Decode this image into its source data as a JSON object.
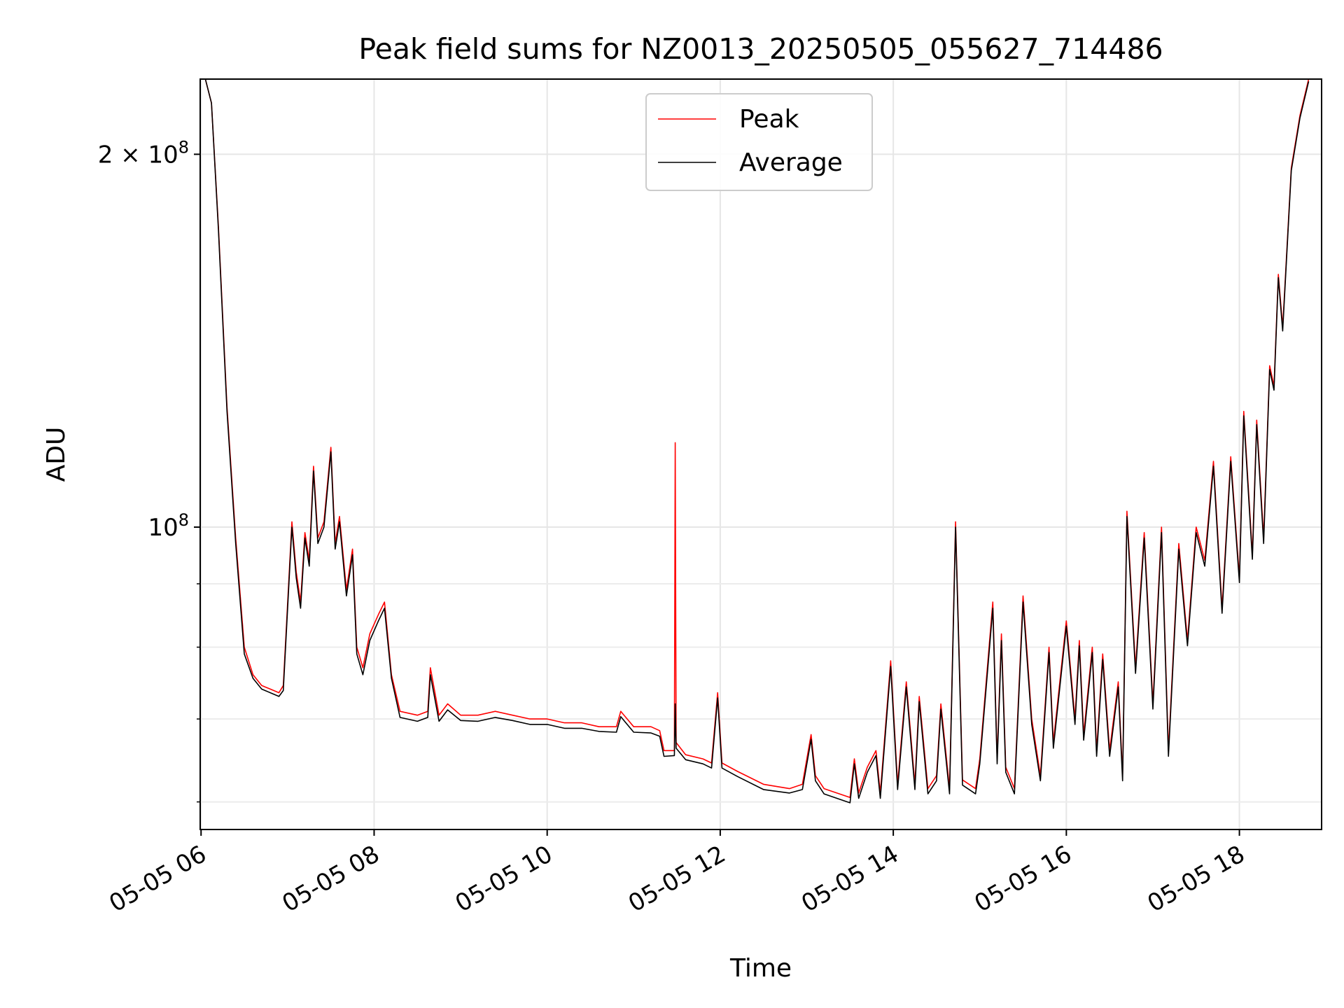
{
  "chart_data": {
    "type": "line",
    "title": "Peak field sums for NZ0013_20250505_055627_714486",
    "xlabel": "Time",
    "ylabel": "ADU",
    "x_unit": "hours",
    "xlim": [
      5.99,
      18.95
    ],
    "x_ticks": [
      {
        "value": 6,
        "label": "05-05 06"
      },
      {
        "value": 8,
        "label": "05-05 08"
      },
      {
        "value": 10,
        "label": "05-05 10"
      },
      {
        "value": 12,
        "label": "05-05 12"
      },
      {
        "value": 14,
        "label": "05-05 14"
      },
      {
        "value": 16,
        "label": "05-05 16"
      },
      {
        "value": 18,
        "label": "05-05 18"
      }
    ],
    "y_scale": "log",
    "ylim": [
      57000000,
      230000000
    ],
    "y_major_ticks": [
      {
        "value": 100000000,
        "label_base": "10",
        "label_exp": "8"
      },
      {
        "value": 200000000,
        "label_base": "2 × 10",
        "label_exp": "8"
      }
    ],
    "y_minor_ticks": [
      60000000,
      70000000,
      80000000,
      90000000
    ],
    "grid": true,
    "legend_position": "top-center",
    "colors": {
      "peak": "#ff0000",
      "average": "#000000"
    },
    "series": [
      {
        "name": "Peak",
        "color": "#ff0000",
        "points": [
          [
            6.05,
            230000000
          ],
          [
            6.12,
            220000000
          ],
          [
            6.2,
            175000000
          ],
          [
            6.3,
            125000000
          ],
          [
            6.4,
            98000000
          ],
          [
            6.5,
            80000000
          ],
          [
            6.6,
            76000000
          ],
          [
            6.7,
            74500000
          ],
          [
            6.8,
            74000000
          ],
          [
            6.9,
            73500000
          ],
          [
            6.95,
            74500000
          ],
          [
            7.05,
            101000000
          ],
          [
            7.1,
            92000000
          ],
          [
            7.15,
            87000000
          ],
          [
            7.2,
            99000000
          ],
          [
            7.25,
            94000000
          ],
          [
            7.3,
            112000000
          ],
          [
            7.35,
            98000000
          ],
          [
            7.42,
            101000000
          ],
          [
            7.5,
            116000000
          ],
          [
            7.55,
            97000000
          ],
          [
            7.6,
            102000000
          ],
          [
            7.68,
            89000000
          ],
          [
            7.75,
            96000000
          ],
          [
            7.8,
            80000000
          ],
          [
            7.87,
            77000000
          ],
          [
            7.95,
            82000000
          ],
          [
            8.05,
            85000000
          ],
          [
            8.12,
            87000000
          ],
          [
            8.2,
            76000000
          ],
          [
            8.3,
            71000000
          ],
          [
            8.5,
            70500000
          ],
          [
            8.62,
            71000000
          ],
          [
            8.65,
            77000000
          ],
          [
            8.75,
            70500000
          ],
          [
            8.85,
            72000000
          ],
          [
            9.0,
            70500000
          ],
          [
            9.2,
            70500000
          ],
          [
            9.4,
            71000000
          ],
          [
            9.6,
            70500000
          ],
          [
            9.8,
            70000000
          ],
          [
            10.0,
            70000000
          ],
          [
            10.2,
            69500000
          ],
          [
            10.4,
            69500000
          ],
          [
            10.6,
            69000000
          ],
          [
            10.8,
            69000000
          ],
          [
            10.85,
            71000000
          ],
          [
            11.0,
            69000000
          ],
          [
            11.2,
            69000000
          ],
          [
            11.3,
            68500000
          ],
          [
            11.35,
            66000000
          ],
          [
            11.47,
            66000000
          ],
          [
            11.48,
            117000000
          ],
          [
            11.49,
            67000000
          ],
          [
            11.6,
            65500000
          ],
          [
            11.8,
            65000000
          ],
          [
            11.9,
            64500000
          ],
          [
            11.97,
            73500000
          ],
          [
            12.02,
            64500000
          ],
          [
            12.2,
            63500000
          ],
          [
            12.5,
            62000000
          ],
          [
            12.8,
            61500000
          ],
          [
            12.95,
            62000000
          ],
          [
            13.05,
            68000000
          ],
          [
            13.1,
            63000000
          ],
          [
            13.2,
            61500000
          ],
          [
            13.5,
            60500000
          ],
          [
            13.55,
            65000000
          ],
          [
            13.6,
            61000000
          ],
          [
            13.7,
            64000000
          ],
          [
            13.8,
            66000000
          ],
          [
            13.85,
            61000000
          ],
          [
            13.97,
            78000000
          ],
          [
            14.05,
            62000000
          ],
          [
            14.15,
            75000000
          ],
          [
            14.25,
            62000000
          ],
          [
            14.3,
            73000000
          ],
          [
            14.4,
            61500000
          ],
          [
            14.5,
            63000000
          ],
          [
            14.55,
            72000000
          ],
          [
            14.65,
            61500000
          ],
          [
            14.72,
            101000000
          ],
          [
            14.8,
            62500000
          ],
          [
            14.95,
            61500000
          ],
          [
            15.0,
            65000000
          ],
          [
            15.15,
            87000000
          ],
          [
            15.2,
            65000000
          ],
          [
            15.25,
            82000000
          ],
          [
            15.3,
            64000000
          ],
          [
            15.4,
            61500000
          ],
          [
            15.5,
            88000000
          ],
          [
            15.6,
            70000000
          ],
          [
            15.7,
            63000000
          ],
          [
            15.8,
            80000000
          ],
          [
            15.85,
            67000000
          ],
          [
            16.0,
            84000000
          ],
          [
            16.1,
            70000000
          ],
          [
            16.15,
            81000000
          ],
          [
            16.2,
            68000000
          ],
          [
            16.3,
            80000000
          ],
          [
            16.35,
            66000000
          ],
          [
            16.42,
            79000000
          ],
          [
            16.5,
            66000000
          ],
          [
            16.6,
            75000000
          ],
          [
            16.65,
            63000000
          ],
          [
            16.7,
            103000000
          ],
          [
            16.8,
            77000000
          ],
          [
            16.9,
            99000000
          ],
          [
            17.0,
            72000000
          ],
          [
            17.1,
            100000000
          ],
          [
            17.18,
            66000000
          ],
          [
            17.3,
            97000000
          ],
          [
            17.4,
            81000000
          ],
          [
            17.5,
            100000000
          ],
          [
            17.6,
            94000000
          ],
          [
            17.7,
            113000000
          ],
          [
            17.8,
            86000000
          ],
          [
            17.9,
            114000000
          ],
          [
            18.0,
            91000000
          ],
          [
            18.05,
            124000000
          ],
          [
            18.15,
            95000000
          ],
          [
            18.2,
            122000000
          ],
          [
            18.28,
            98000000
          ],
          [
            18.35,
            135000000
          ],
          [
            18.4,
            130000000
          ],
          [
            18.45,
            160000000
          ],
          [
            18.5,
            145000000
          ],
          [
            18.6,
            195000000
          ],
          [
            18.7,
            215000000
          ],
          [
            18.8,
            230000000
          ]
        ]
      },
      {
        "name": "Average",
        "color": "#000000",
        "points": [
          [
            6.05,
            230000000
          ],
          [
            6.12,
            220000000
          ],
          [
            6.2,
            174000000
          ],
          [
            6.3,
            124000000
          ],
          [
            6.4,
            97000000
          ],
          [
            6.5,
            79000000
          ],
          [
            6.6,
            75500000
          ],
          [
            6.7,
            74000000
          ],
          [
            6.8,
            73500000
          ],
          [
            6.9,
            73000000
          ],
          [
            6.95,
            73800000
          ],
          [
            7.05,
            100000000
          ],
          [
            7.1,
            91000000
          ],
          [
            7.15,
            86000000
          ],
          [
            7.2,
            98000000
          ],
          [
            7.25,
            93000000
          ],
          [
            7.3,
            111000000
          ],
          [
            7.35,
            97000000
          ],
          [
            7.42,
            100000000
          ],
          [
            7.5,
            115000000
          ],
          [
            7.55,
            96000000
          ],
          [
            7.6,
            101000000
          ],
          [
            7.68,
            88000000
          ],
          [
            7.75,
            95000000
          ],
          [
            7.8,
            79000000
          ],
          [
            7.87,
            76000000
          ],
          [
            7.95,
            81000000
          ],
          [
            8.05,
            84000000
          ],
          [
            8.12,
            86000000
          ],
          [
            8.2,
            75500000
          ],
          [
            8.3,
            70200000
          ],
          [
            8.5,
            69700000
          ],
          [
            8.62,
            70200000
          ],
          [
            8.65,
            76000000
          ],
          [
            8.75,
            69700000
          ],
          [
            8.85,
            71200000
          ],
          [
            9.0,
            69800000
          ],
          [
            9.2,
            69700000
          ],
          [
            9.4,
            70200000
          ],
          [
            9.6,
            69800000
          ],
          [
            9.8,
            69300000
          ],
          [
            10.0,
            69300000
          ],
          [
            10.2,
            68800000
          ],
          [
            10.4,
            68800000
          ],
          [
            10.6,
            68400000
          ],
          [
            10.8,
            68300000
          ],
          [
            10.85,
            70300000
          ],
          [
            11.0,
            68300000
          ],
          [
            11.2,
            68200000
          ],
          [
            11.3,
            67800000
          ],
          [
            11.35,
            65300000
          ],
          [
            11.47,
            65400000
          ],
          [
            11.48,
            72000000
          ],
          [
            11.49,
            66300000
          ],
          [
            11.6,
            64900000
          ],
          [
            11.8,
            64400000
          ],
          [
            11.9,
            63900000
          ],
          [
            11.97,
            72800000
          ],
          [
            12.02,
            63900000
          ],
          [
            12.2,
            62900000
          ],
          [
            12.5,
            61400000
          ],
          [
            12.8,
            61000000
          ],
          [
            12.95,
            61400000
          ],
          [
            13.05,
            67400000
          ],
          [
            13.1,
            62400000
          ],
          [
            13.2,
            60900000
          ],
          [
            13.5,
            59900000
          ],
          [
            13.55,
            64400000
          ],
          [
            13.6,
            60400000
          ],
          [
            13.7,
            63400000
          ],
          [
            13.8,
            65400000
          ],
          [
            13.85,
            60400000
          ],
          [
            13.97,
            77200000
          ],
          [
            14.05,
            61400000
          ],
          [
            14.15,
            74300000
          ],
          [
            14.25,
            61400000
          ],
          [
            14.3,
            72300000
          ],
          [
            14.4,
            60900000
          ],
          [
            14.5,
            62400000
          ],
          [
            14.55,
            71300000
          ],
          [
            14.65,
            60900000
          ],
          [
            14.72,
            100000000
          ],
          [
            14.8,
            61900000
          ],
          [
            14.95,
            60900000
          ],
          [
            15.0,
            64400000
          ],
          [
            15.15,
            86000000
          ],
          [
            15.2,
            64400000
          ],
          [
            15.25,
            81000000
          ],
          [
            15.3,
            63400000
          ],
          [
            15.4,
            60900000
          ],
          [
            15.5,
            87000000
          ],
          [
            15.6,
            69300000
          ],
          [
            15.7,
            62400000
          ],
          [
            15.8,
            79200000
          ],
          [
            15.85,
            66300000
          ],
          [
            16.0,
            83200000
          ],
          [
            16.1,
            69300000
          ],
          [
            16.15,
            80200000
          ],
          [
            16.2,
            67300000
          ],
          [
            16.3,
            79200000
          ],
          [
            16.35,
            65300000
          ],
          [
            16.42,
            78200000
          ],
          [
            16.5,
            65300000
          ],
          [
            16.6,
            74300000
          ],
          [
            16.65,
            62400000
          ],
          [
            16.7,
            102000000
          ],
          [
            16.8,
            76200000
          ],
          [
            16.9,
            98000000
          ],
          [
            17.0,
            71300000
          ],
          [
            17.1,
            99000000
          ],
          [
            17.18,
            65300000
          ],
          [
            17.3,
            96000000
          ],
          [
            17.4,
            80200000
          ],
          [
            17.5,
            99000000
          ],
          [
            17.6,
            93000000
          ],
          [
            17.7,
            112000000
          ],
          [
            17.8,
            85200000
          ],
          [
            17.9,
            113000000
          ],
          [
            18.0,
            90200000
          ],
          [
            18.05,
            123000000
          ],
          [
            18.15,
            94200000
          ],
          [
            18.2,
            121000000
          ],
          [
            18.28,
            97000000
          ],
          [
            18.35,
            134000000
          ],
          [
            18.4,
            129000000
          ],
          [
            18.45,
            159000000
          ],
          [
            18.5,
            144000000
          ],
          [
            18.6,
            194000000
          ],
          [
            18.7,
            214000000
          ],
          [
            18.8,
            229000000
          ]
        ]
      }
    ]
  }
}
